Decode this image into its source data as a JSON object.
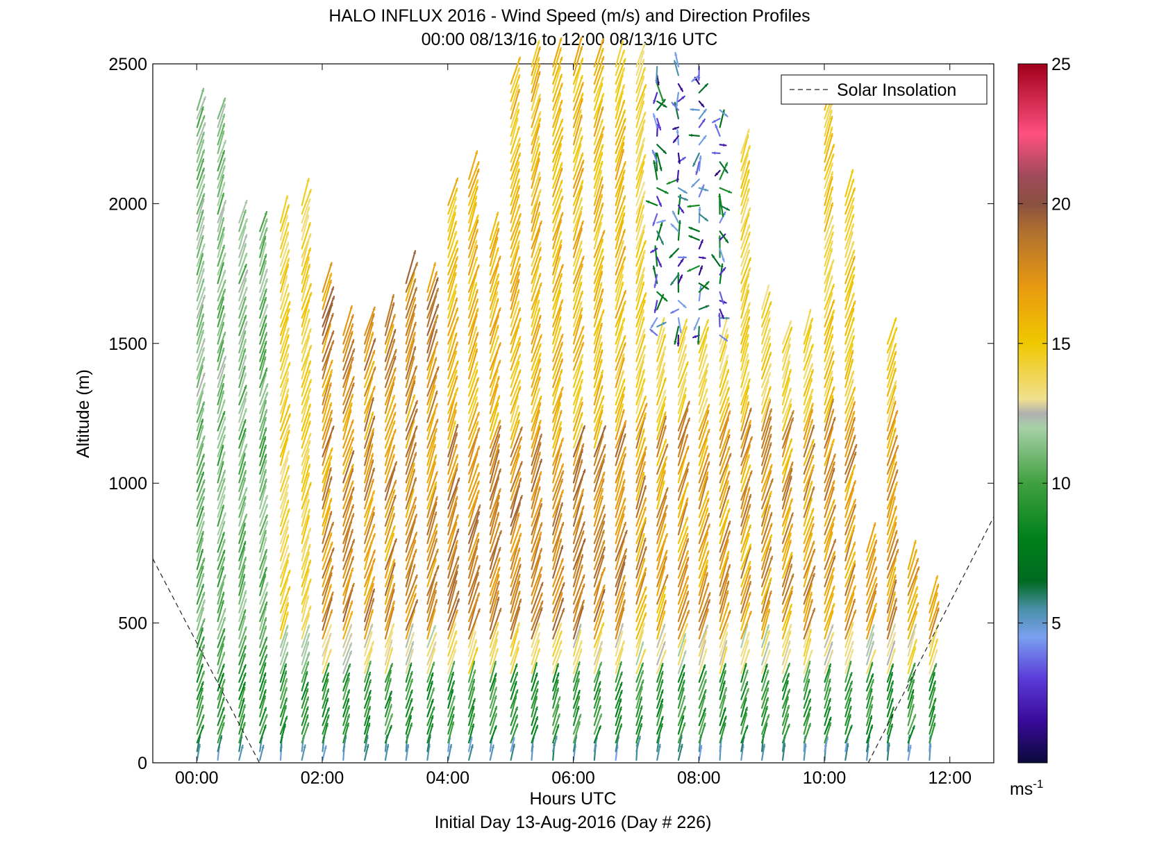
{
  "chart_data": {
    "type": "wind-barb-profile",
    "title": "HALO INFLUX 2016 - Wind Speed (m/s) and Direction Profiles",
    "subtitle": "00:00 08/13/16 to 12:00 08/13/16  UTC",
    "xlabel": "Hours UTC",
    "xlabel2": "Initial Day 13-Aug-2016 (Day # 226)",
    "ylabel": "Altitude (m)",
    "xlim": [
      -0.7,
      12.7
    ],
    "ylim": [
      0,
      2500
    ],
    "xticks": [
      0,
      2,
      4,
      6,
      8,
      10,
      12
    ],
    "xtick_labels": [
      "00:00",
      "02:00",
      "04:00",
      "06:00",
      "08:00",
      "10:00",
      "12:00"
    ],
    "yticks": [
      0,
      500,
      1000,
      1500,
      2000,
      2500
    ],
    "ytick_labels": [
      "0",
      "500",
      "1000",
      "1500",
      "2000",
      "2500"
    ],
    "grid": false,
    "legend": {
      "entries": [
        "Solar Insolation"
      ],
      "position": "top-right"
    },
    "colorbar": {
      "label": "ms-1",
      "range": [
        0,
        25
      ],
      "ticks": [
        5,
        10,
        15,
        20,
        25
      ],
      "tick_labels": [
        "5",
        "10",
        "15",
        "20",
        "25"
      ]
    },
    "solar_insolation": {
      "x": [
        -0.7,
        1.0,
        10.7,
        12.7
      ],
      "y": [
        730,
        0,
        0,
        880
      ]
    },
    "profile_times": [
      0.05,
      0.38,
      0.72,
      1.05,
      1.38,
      1.72,
      2.05,
      2.38,
      2.72,
      3.05,
      3.38,
      3.72,
      4.05,
      4.38,
      4.72,
      5.05,
      5.38,
      5.72,
      6.05,
      6.38,
      6.72,
      7.05,
      7.38,
      7.72,
      8.05,
      8.38,
      8.72,
      9.05,
      9.38,
      9.72,
      10.05,
      10.38,
      10.72,
      11.05,
      11.38,
      11.72
    ],
    "profile_top_altitude": [
      2350,
      2320,
      1950,
      1920,
      1950,
      2000,
      1700,
      1530,
      1530,
      1580,
      1740,
      1700,
      2000,
      2090,
      1900,
      2450,
      2500,
      2500,
      2500,
      2500,
      2500,
      2500,
      2500,
      2500,
      2500,
      2350,
      2200,
      1650,
      1500,
      1530,
      2350,
      2050,
      780,
      1500,
      700,
      580
    ],
    "speed_notes": "Speeds ~5 m/s near surface, 7-12 m/s in lowest 300-500 m, 15-20 m/s in 500-2000 m layer from 02:00 to 11:00, light/variable (1-6 m/s) aloft near 07:30-08:30, arrows pointing generally to the north-northeast"
  }
}
